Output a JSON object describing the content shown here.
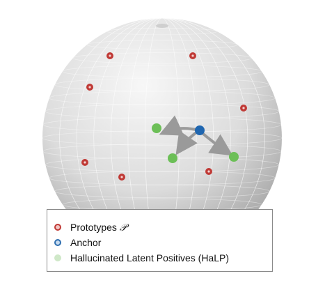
{
  "legend": {
    "prototypes_label": "Prototypes ",
    "prototypes_symbol": "𝒫",
    "anchor_label": "Anchor",
    "halp_label": "Hallucinated Latent Positives (HaLP)"
  },
  "colors": {
    "prototype": "#c03a36",
    "anchor": "#1f66b0",
    "halp": "#6cbf57",
    "arrow": "#9a9a9a"
  }
}
